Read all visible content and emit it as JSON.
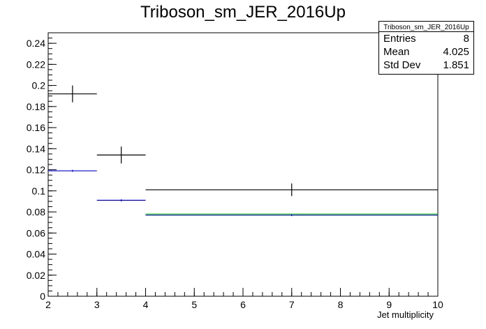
{
  "title": "Triboson_sm_JER_2016Up",
  "stats_box": {
    "name": "Triboson_sm_JER_2016Up",
    "rows": [
      {
        "label": "Entries",
        "value": "8"
      },
      {
        "label": "Mean",
        "value": "4.025"
      },
      {
        "label": "Std Dev",
        "value": "1.851"
      }
    ]
  },
  "colors": {
    "nominal": "#000000",
    "variation": "#0000ff",
    "reference": "#00cc00"
  },
  "chart_data": {
    "type": "histogram",
    "xlabel": "Jet multiplicity",
    "ylabel": "",
    "xlim": [
      2,
      10
    ],
    "ylim": [
      0,
      0.25
    ],
    "x_ticks": [
      "2",
      "3",
      "4",
      "5",
      "6",
      "7",
      "8",
      "9",
      "10"
    ],
    "y_ticks": [
      "0",
      "0.02",
      "0.04",
      "0.06",
      "0.08",
      "0.1",
      "0.12",
      "0.14",
      "0.16",
      "0.18",
      "0.2",
      "0.22",
      "0.24"
    ],
    "series": [
      {
        "color": "#000000",
        "bins": [
          {
            "x_low": 2,
            "x_high": 3,
            "y": 0.192,
            "err": 0.008
          },
          {
            "x_low": 3,
            "x_high": 4,
            "y": 0.134,
            "err": 0.008
          },
          {
            "x_low": 4,
            "x_high": 10,
            "y": 0.101,
            "err": 0.006
          }
        ]
      },
      {
        "color": "#0000ff",
        "bins": [
          {
            "x_low": 2,
            "x_high": 3,
            "y": 0.119,
            "err": 0.001
          },
          {
            "x_low": 3,
            "x_high": 4,
            "y": 0.091,
            "err": 0.001
          },
          {
            "x_low": 4,
            "x_high": 10,
            "y": 0.077,
            "err": 0.001
          }
        ]
      },
      {
        "color": "#00cc00",
        "bins": [
          {
            "x_low": 4,
            "x_high": 10,
            "y": 0.078,
            "err": 0
          }
        ]
      }
    ]
  }
}
